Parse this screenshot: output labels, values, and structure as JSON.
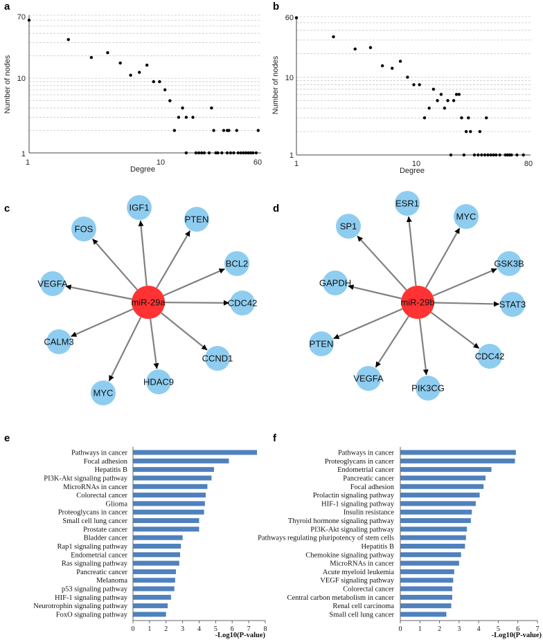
{
  "chart_data": [
    {
      "panel": "a",
      "type": "scatter",
      "xlabel": "Degree",
      "ylabel": "Number of nodes",
      "xscale": "log",
      "yscale": "log",
      "xlim": [
        1,
        60
      ],
      "ylim": [
        1,
        70
      ],
      "x_ticks": [
        "1",
        "10",
        "60"
      ],
      "y_ticks": [
        "1",
        "10",
        "70"
      ],
      "grid": "horizontal dashed",
      "points": [
        {
          "x": 1,
          "y": 60
        },
        {
          "x": 2,
          "y": 33
        },
        {
          "x": 3,
          "y": 19
        },
        {
          "x": 4,
          "y": 22
        },
        {
          "x": 5,
          "y": 16
        },
        {
          "x": 6,
          "y": 11
        },
        {
          "x": 7,
          "y": 12
        },
        {
          "x": 8,
          "y": 15
        },
        {
          "x": 9,
          "y": 9
        },
        {
          "x": 10,
          "y": 9
        },
        {
          "x": 11,
          "y": 7
        },
        {
          "x": 12,
          "y": 5
        },
        {
          "x": 13,
          "y": 2
        },
        {
          "x": 14,
          "y": 3
        },
        {
          "x": 15,
          "y": 4
        },
        {
          "x": 16,
          "y": 3
        },
        {
          "x": 18,
          "y": 3
        },
        {
          "x": 16,
          "y": 1
        },
        {
          "x": 19,
          "y": 1
        },
        {
          "x": 20,
          "y": 1
        },
        {
          "x": 21,
          "y": 1
        },
        {
          "x": 22,
          "y": 1
        },
        {
          "x": 24,
          "y": 1
        },
        {
          "x": 25,
          "y": 4
        },
        {
          "x": 26,
          "y": 2
        },
        {
          "x": 27,
          "y": 1
        },
        {
          "x": 28,
          "y": 1
        },
        {
          "x": 30,
          "y": 1
        },
        {
          "x": 31,
          "y": 2
        },
        {
          "x": 33,
          "y": 2
        },
        {
          "x": 34,
          "y": 2
        },
        {
          "x": 33,
          "y": 1
        },
        {
          "x": 35,
          "y": 1
        },
        {
          "x": 37,
          "y": 1
        },
        {
          "x": 39,
          "y": 2
        },
        {
          "x": 40,
          "y": 1
        },
        {
          "x": 42,
          "y": 1
        },
        {
          "x": 44,
          "y": 1
        },
        {
          "x": 46,
          "y": 1
        },
        {
          "x": 48,
          "y": 1
        },
        {
          "x": 50,
          "y": 1
        },
        {
          "x": 52,
          "y": 1
        },
        {
          "x": 55,
          "y": 1
        },
        {
          "x": 57,
          "y": 2
        }
      ]
    },
    {
      "panel": "b",
      "type": "scatter",
      "xlabel": "Degree",
      "ylabel": "Number of nodes",
      "xscale": "log",
      "yscale": "log",
      "xlim": [
        1,
        80
      ],
      "ylim": [
        1,
        60
      ],
      "x_ticks": [
        "1",
        "10",
        "80"
      ],
      "y_ticks": [
        "1",
        "10",
        "60"
      ],
      "grid": "horizontal dashed",
      "points": [
        {
          "x": 1,
          "y": 58
        },
        {
          "x": 2,
          "y": 33
        },
        {
          "x": 3,
          "y": 23
        },
        {
          "x": 4,
          "y": 24
        },
        {
          "x": 5,
          "y": 14
        },
        {
          "x": 6,
          "y": 13
        },
        {
          "x": 7,
          "y": 16
        },
        {
          "x": 8,
          "y": 10
        },
        {
          "x": 9,
          "y": 8
        },
        {
          "x": 10,
          "y": 8
        },
        {
          "x": 11,
          "y": 3
        },
        {
          "x": 12,
          "y": 4
        },
        {
          "x": 13,
          "y": 7
        },
        {
          "x": 14,
          "y": 5
        },
        {
          "x": 15,
          "y": 6
        },
        {
          "x": 16,
          "y": 4
        },
        {
          "x": 17,
          "y": 5
        },
        {
          "x": 19,
          "y": 5
        },
        {
          "x": 20,
          "y": 6
        },
        {
          "x": 21,
          "y": 6
        },
        {
          "x": 18,
          "y": 1
        },
        {
          "x": 22,
          "y": 3
        },
        {
          "x": 23,
          "y": 1
        },
        {
          "x": 24,
          "y": 2
        },
        {
          "x": 25,
          "y": 3
        },
        {
          "x": 26,
          "y": 2
        },
        {
          "x": 28,
          "y": 1
        },
        {
          "x": 30,
          "y": 1
        },
        {
          "x": 31,
          "y": 2
        },
        {
          "x": 32,
          "y": 1
        },
        {
          "x": 34,
          "y": 1
        },
        {
          "x": 35,
          "y": 3
        },
        {
          "x": 36,
          "y": 1
        },
        {
          "x": 38,
          "y": 1
        },
        {
          "x": 40,
          "y": 1
        },
        {
          "x": 42,
          "y": 1
        },
        {
          "x": 45,
          "y": 1
        },
        {
          "x": 50,
          "y": 1
        },
        {
          "x": 52,
          "y": 1
        },
        {
          "x": 54,
          "y": 1
        },
        {
          "x": 56,
          "y": 1
        },
        {
          "x": 62,
          "y": 1
        },
        {
          "x": 70,
          "y": 1
        }
      ]
    },
    {
      "panel": "e",
      "type": "bar",
      "orientation": "horizontal",
      "xlabel": "-Log10(P-value)",
      "xlim": [
        0,
        8
      ],
      "x_ticks": [
        "0",
        "1",
        "2",
        "3",
        "4",
        "5",
        "6",
        "7",
        "8"
      ],
      "bar_color": "#4f81bd",
      "categories": [
        "Pathways in cancer",
        "Focal adhesion",
        "Hepatitis B",
        "PI3K-Akt signaling pathway",
        "MicroRNAs in cancer",
        "Colorectal cancer",
        "Glioma",
        "Proteoglycans in cancer",
        "Small cell lung cancer",
        "Prostate cancer",
        "Bladder cancer",
        "Rap1 signaling pathway",
        "Endometrial cancer",
        "Ras signaling pathway",
        "Pancreatic cancer",
        "Melanoma",
        "p53 signaling pathway",
        "HIF-1 signaling pathway",
        "Neurotrophin signaling pathway",
        "FoxO signaling pathway"
      ],
      "values": [
        7.5,
        5.8,
        4.9,
        4.75,
        4.5,
        4.4,
        4.35,
        4.3,
        4.0,
        4.0,
        3.0,
        2.9,
        2.85,
        2.8,
        2.6,
        2.55,
        2.5,
        2.3,
        2.1,
        2.0
      ]
    },
    {
      "panel": "f",
      "type": "bar",
      "orientation": "horizontal",
      "xlabel": "-Log10(P-value)",
      "xlim": [
        0,
        7
      ],
      "x_ticks": [
        "0",
        "1",
        "2",
        "3",
        "4",
        "5",
        "6",
        "7"
      ],
      "bar_color": "#4f81bd",
      "categories": [
        "Pathways in cancer",
        "Proteoglycans in cancer",
        "Endometrial cancer",
        "Pancreatic cancer",
        "Focal adhesion",
        "Prolactin signaling pathway",
        "HIF-1 signaling pathway",
        "Insulin resistance",
        "Thyroid hormone signaling pathway",
        "PI3K-Akt signaling pathway",
        "Pathways regulating pluripotency of stem cells",
        "Hepatitis B",
        "Chemokine signaling pathway",
        "MicroRNAs in cancer",
        "Acute myeloid leukemia",
        "VEGF signaling pathway",
        "Colorectal cancer",
        "Central carbon metabolism in cancer",
        "Renal cell carcinoma",
        "Small cell lung cancer"
      ],
      "values": [
        5.9,
        5.85,
        4.65,
        4.35,
        4.25,
        4.05,
        3.85,
        3.65,
        3.6,
        3.4,
        3.35,
        3.3,
        3.1,
        3.0,
        2.75,
        2.7,
        2.65,
        2.65,
        2.6,
        2.35
      ]
    }
  ],
  "networks": [
    {
      "panel": "c",
      "hub": "miR-29a",
      "targets": [
        "IGF1",
        "PTEN",
        "BCL2",
        "CDC42",
        "CCND1",
        "HDAC9",
        "MYC",
        "CALM3",
        "VEGFA",
        "FOS"
      ]
    },
    {
      "panel": "d",
      "hub": "miR-29b",
      "targets": [
        "ESR1",
        "MYC",
        "GSK3B",
        "STAT3",
        "CDC42",
        "PIK3CG",
        "VEGFA",
        "PTEN",
        "GAPDH",
        "SP1"
      ]
    }
  ],
  "colors": {
    "hub": "#ff3333",
    "target": "#8ecdf0",
    "edge": "#808080",
    "bar": "#4f81bd"
  }
}
